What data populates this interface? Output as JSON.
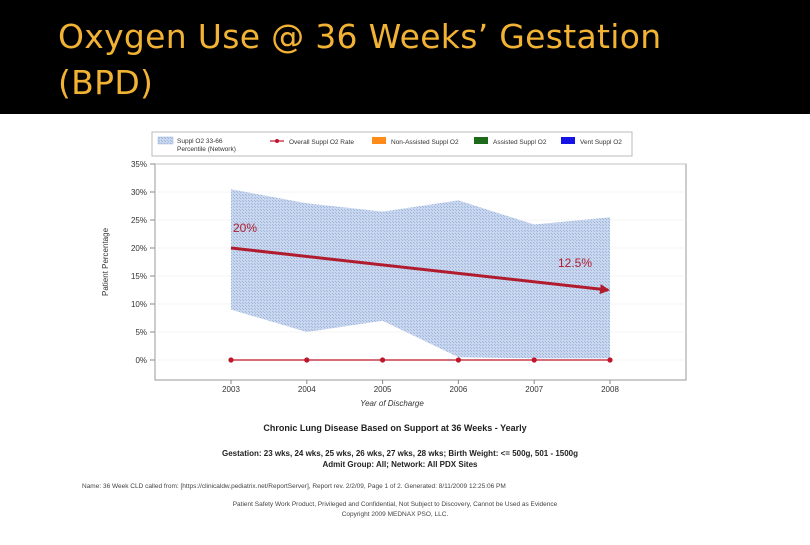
{
  "slide": {
    "title": "Oxygen Use @ 36 Weeks’ Gestation (BPD)"
  },
  "colors": {
    "header_bg": "#000000",
    "title": "#f2b233",
    "band": "#b9cbe8",
    "overall_rate": "#c0162a",
    "non_assisted": "#ff8c1a",
    "assisted": "#1b6b1b",
    "vent": "#1414e6",
    "annotation_arrow": "#b01c2e"
  },
  "chart_data": {
    "type": "area",
    "title": "Chronic Lung Disease Based on Support at 36 Weeks - Yearly",
    "xlabel": "Year of Discharge",
    "ylabel": "Patient Percentage",
    "categories": [
      "2003",
      "2004",
      "2005",
      "2006",
      "2007",
      "2008"
    ],
    "ylim": [
      0,
      35
    ],
    "yticks": [
      "0%",
      "5%",
      "10%",
      "15%",
      "20%",
      "25%",
      "30%",
      "35%"
    ],
    "band": {
      "name": "Suppl O2 33-66 Percentile (Network)",
      "upper": [
        30.5,
        28,
        26.5,
        28.5,
        24.2,
        25.5
      ],
      "lower": [
        9,
        5,
        7,
        0.5,
        0.3,
        0.3
      ]
    },
    "series": [
      {
        "name": "Overall Suppl O2 Rate",
        "values": [
          0,
          0,
          0,
          0,
          0,
          0
        ]
      }
    ],
    "legend": [
      {
        "label": "Suppl O2 33-66 Percentile (Network)",
        "kind": "band"
      },
      {
        "label": "Overall Suppl O2 Rate",
        "kind": "line"
      },
      {
        "label": "Non-Assisted Suppl O2",
        "kind": "box"
      },
      {
        "label": "Assisted Suppl O2",
        "kind": "box"
      },
      {
        "label": "Vent Suppl O2",
        "kind": "box"
      }
    ],
    "annotation": {
      "start_label": "20%",
      "end_label": "12.5%",
      "start": {
        "x": "2003",
        "y": 20
      },
      "end": {
        "x": "2008",
        "y": 12.5
      }
    }
  },
  "footer": {
    "subtitle_line1": "Gestation: 23 wks, 24 wks, 25 wks, 26 wks, 27 wks, 28 wks; Birth Weight: <= 500g, 501 - 1500g",
    "subtitle_line2": "Admit Group: All; Network: All PDX Sites",
    "note": "Name: 36 Week CLD called from: [https://clinicaldw.pediatrix.net/ReportServer], Report rev. 2/2/09, Page 1 of 2. Generated: 8/11/2009 12:25:06 PM",
    "confidential_line1": "Patient Safety Work Product, Privileged and Confidential, Not Subject to Discovery, Cannot be Used as Evidence",
    "confidential_line2": "Copyright 2009 MEDNAX PSO, LLC."
  }
}
